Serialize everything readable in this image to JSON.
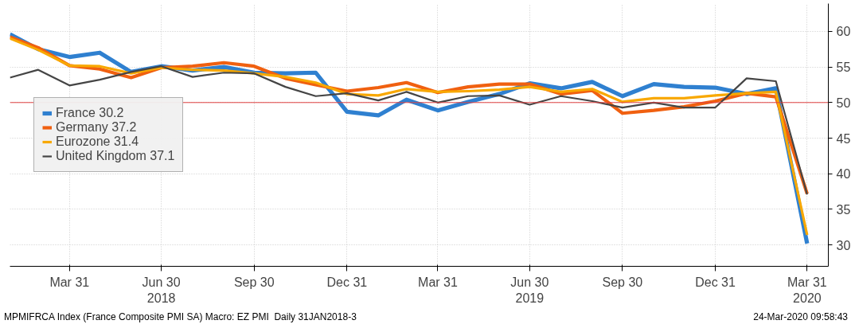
{
  "chart_data": {
    "type": "line",
    "x": [
      "2018-01-31",
      "2018-02-28",
      "2018-03-31",
      "2018-04-30",
      "2018-05-31",
      "2018-06-30",
      "2018-07-31",
      "2018-08-31",
      "2018-09-30",
      "2018-10-31",
      "2018-11-30",
      "2018-12-31",
      "2019-01-31",
      "2019-02-28",
      "2019-03-31",
      "2019-04-30",
      "2019-05-31",
      "2019-06-30",
      "2019-07-31",
      "2019-08-31",
      "2019-09-30",
      "2019-10-31",
      "2019-11-30",
      "2019-12-31",
      "2020-01-31",
      "2020-02-29",
      "2020-03-31"
    ],
    "series": [
      {
        "name": "France 30.2",
        "color": "#2f80d0",
        "values": [
          59.6,
          57.5,
          56.4,
          57.0,
          54.3,
          55.1,
          54.5,
          55.0,
          54.2,
          54.1,
          54.2,
          48.7,
          48.2,
          50.4,
          48.9,
          50.1,
          51.2,
          52.7,
          52.0,
          52.9,
          50.9,
          52.6,
          52.2,
          52.1,
          51.2,
          52.0,
          30.2
        ]
      },
      {
        "name": "Germany 37.2",
        "color": "#f06010",
        "values": [
          59.2,
          57.7,
          55.2,
          54.7,
          53.5,
          54.9,
          55.1,
          55.6,
          55.1,
          53.4,
          52.5,
          51.6,
          52.1,
          52.8,
          51.4,
          52.2,
          52.6,
          52.6,
          51.2,
          51.7,
          48.5,
          48.9,
          49.4,
          50.2,
          51.3,
          50.8,
          37.2
        ]
      },
      {
        "name": "Eurozone 31.4",
        "color": "#f8a800",
        "values": [
          59.0,
          57.4,
          55.2,
          55.1,
          54.1,
          54.9,
          54.6,
          54.5,
          54.1,
          53.6,
          52.8,
          51.2,
          51.0,
          51.9,
          51.5,
          51.6,
          51.8,
          52.2,
          51.5,
          51.9,
          50.1,
          50.6,
          50.6,
          51.0,
          51.3,
          51.5,
          31.4
        ]
      },
      {
        "name": "United Kingdom 37.1",
        "color": "#454545",
        "values": [
          53.5,
          54.6,
          52.4,
          53.2,
          54.3,
          55.1,
          53.6,
          54.2,
          54.1,
          52.2,
          50.9,
          51.3,
          50.3,
          51.5,
          50.0,
          50.9,
          51.0,
          49.7,
          50.9,
          50.2,
          49.3,
          50.0,
          49.3,
          49.3,
          53.4,
          53.0,
          37.1
        ]
      }
    ],
    "xlim": [
      "2018-01-31",
      "2020-04-21"
    ],
    "xticks": [
      {
        "value": "2018-03-31",
        "label": "Mar 31"
      },
      {
        "value": "2018-06-30",
        "label": "Jun 30\n2018"
      },
      {
        "value": "2018-09-30",
        "label": "Sep 30"
      },
      {
        "value": "2018-12-31",
        "label": "Dec 31"
      },
      {
        "value": "2019-03-31",
        "label": "Mar 31"
      },
      {
        "value": "2019-06-30",
        "label": "Jun 30\n2019"
      },
      {
        "value": "2019-09-30",
        "label": "Sep 30"
      },
      {
        "value": "2019-12-31",
        "label": "Dec 31"
      },
      {
        "value": "2020-03-31",
        "label": "Mar 31\n2020"
      }
    ],
    "ylim": [
      27,
      63.9
    ],
    "yticks": [
      30,
      35,
      40,
      45,
      50,
      55,
      60
    ],
    "ref_lines": [
      {
        "axis": "y",
        "value": 50,
        "color": "#e04040"
      }
    ],
    "grid": true,
    "legend": "left",
    "annotations": [
      "MPMIFRCA Index (France Composite PMI SA) Macro: EZ PMI  Daily 31JAN2018-3",
      "24-Mar-2020 09:58:43"
    ]
  }
}
